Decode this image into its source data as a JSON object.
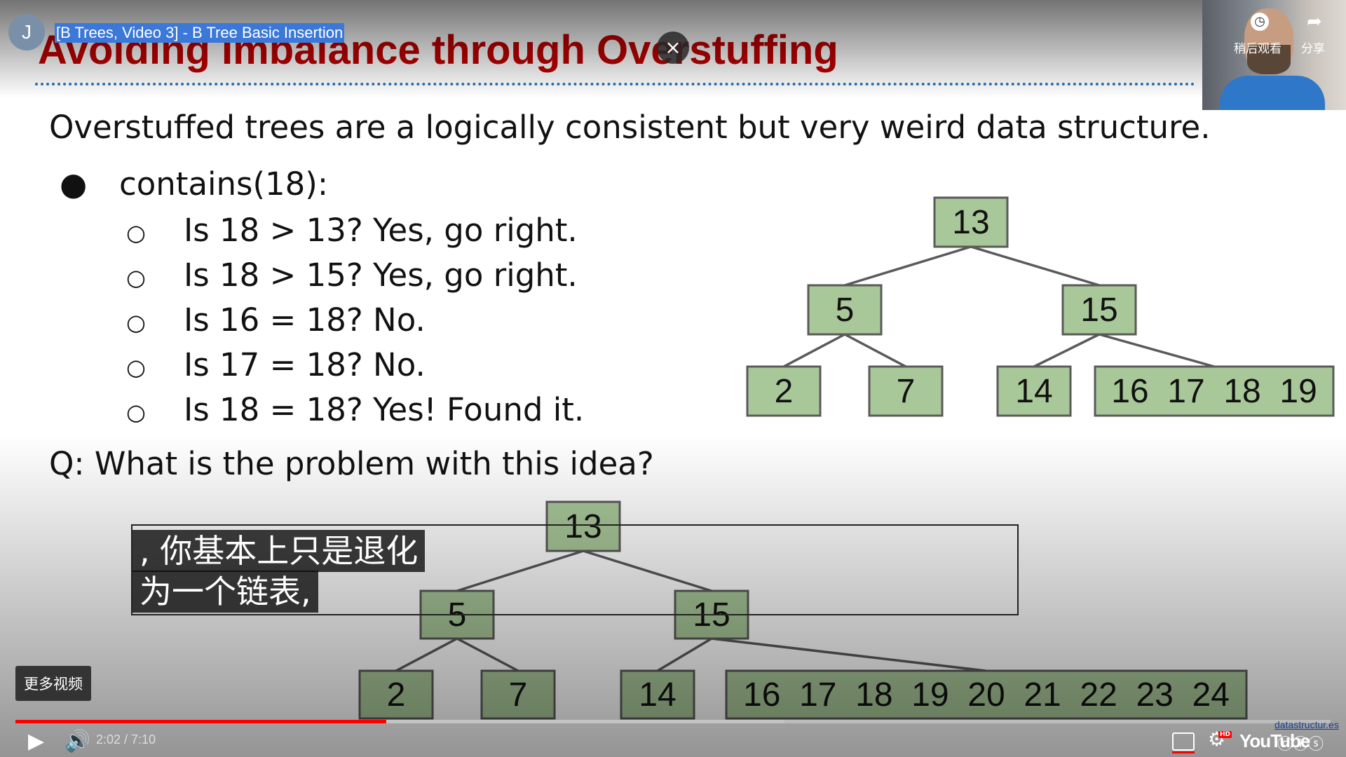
{
  "slide": {
    "title": "Avoiding Imbalance through Overstuffing",
    "intro": "Overstuffed trees are a logically consistent but very weird data structure.",
    "bullet_marker": "●",
    "bullet": "contains(18):",
    "sub_marker": "○",
    "steps": [
      "Is 18 > 13? Yes, go right.",
      "Is 18 > 15? Yes, go right.",
      "Is 16 = 18? No.",
      "Is 17 = 18? No.",
      "Is 18 = 18? Yes! Found it."
    ],
    "question": "Q: What is the problem with this idea?",
    "tree_top": {
      "root": "13",
      "left": "5",
      "right": "15",
      "leaves": [
        "2",
        "7",
        "14",
        "16  17  18  19"
      ]
    },
    "tree_bottom": {
      "root": "13",
      "left": "5",
      "right": "15",
      "leaves": [
        "2",
        "7",
        "14",
        "16  17  18  19  20  21  22  23  24"
      ]
    },
    "node_fill": "#a9c899",
    "title_color": "#c00000"
  },
  "player": {
    "channel_initial": "J",
    "video_title": "[B Trees, Video 3] - B Tree Basic Insertion",
    "close_symbol": "×",
    "watch_later_label": "稍后观看",
    "share_label": "分享",
    "more_videos_label": "更多视频",
    "captions": [
      ",  你基本上只是退化",
      "为一个链表,"
    ],
    "time_display": "2:02 / 7:10",
    "progress": 0.282,
    "buffered": 0.585,
    "play_icon": "▶",
    "volume_icon": "🔊",
    "settings_icon": "⚙",
    "hd_badge": "HD",
    "youtube_label": "YouTube",
    "license_icons": "ⓒⓘⓢ",
    "watermark_link": "datastructur.es",
    "accent_color": "#ff0000"
  }
}
